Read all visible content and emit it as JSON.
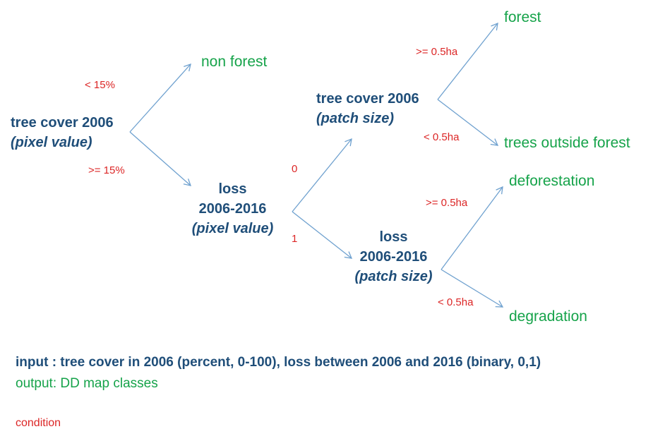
{
  "root": {
    "title": "tree cover 2006",
    "subtitle": "(pixel value)"
  },
  "non_forest": "non forest",
  "cond_lt15": "< 15%",
  "cond_ge15": ">= 15%",
  "loss_pixel": {
    "title": "loss",
    "years": "2006-2016",
    "subtitle": "(pixel value)"
  },
  "cond_0": "0",
  "cond_1": "1",
  "tc_patch": {
    "title": "tree cover 2006",
    "subtitle": "(patch size)"
  },
  "cond_ge05_top": ">= 0.5ha",
  "cond_lt05_top": "< 0.5ha",
  "forest": "forest",
  "trees_outside_forest": "trees outside forest",
  "loss_patch": {
    "title": "loss",
    "years": "2006-2016",
    "subtitle": "(patch size)"
  },
  "cond_ge05_bottom": ">= 0.5ha",
  "cond_lt05_bottom": "< 0.5ha",
  "deforestation": "deforestation",
  "degradation": "degradation",
  "legend": {
    "input": "input : tree cover in 2006 (percent, 0-100), loss between 2006 and 2016 (binary, 0,1)",
    "output": "output: DD map classes",
    "condition": "condition"
  },
  "colors": {
    "node": "#1f4e79",
    "leaf": "#16a34a",
    "condition": "#dc2626",
    "arrow": "#6fa1cf"
  }
}
